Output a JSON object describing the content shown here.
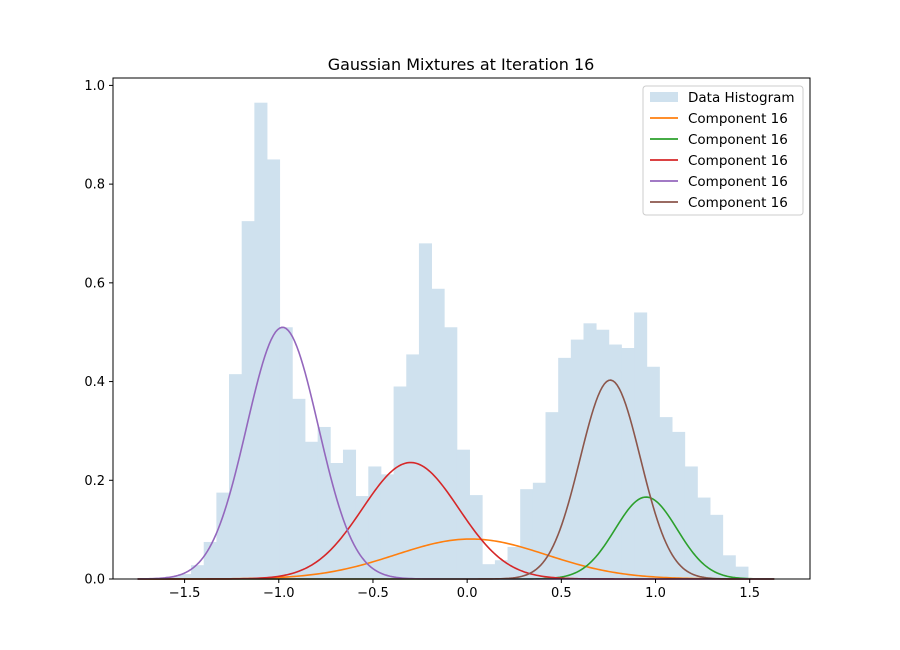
{
  "chart_data": {
    "type": "histogram-with-lines",
    "title": "Gaussian Mixtures at Iteration 16",
    "xlabel": "",
    "ylabel": "",
    "xlim": [
      -1.88,
      1.82
    ],
    "ylim": [
      0,
      1.015
    ],
    "xticks": [
      -1.5,
      -1.0,
      -0.5,
      0.0,
      0.5,
      1.0,
      1.5
    ],
    "xtick_labels": [
      "−1.5",
      "−1.0",
      "−0.5",
      "0.0",
      "0.5",
      "1.0",
      "1.5"
    ],
    "yticks": [
      0.0,
      0.2,
      0.4,
      0.6,
      0.8,
      1.0
    ],
    "ytick_labels": [
      "0.0",
      "0.2",
      "0.4",
      "0.6",
      "0.8",
      "1.0"
    ],
    "legend_position": "upper right",
    "histogram": {
      "name": "Data Histogram",
      "color": "#cfe1ee",
      "bin_start": -1.6,
      "bin_width": 0.0672,
      "heights": [
        0.005,
        0.01,
        0.028,
        0.075,
        0.175,
        0.415,
        0.725,
        0.965,
        0.85,
        0.51,
        0.365,
        0.278,
        0.308,
        0.235,
        0.262,
        0.168,
        0.228,
        0.212,
        0.39,
        0.455,
        0.68,
        0.588,
        0.51,
        0.262,
        0.17,
        0.03,
        0.038,
        0.065,
        0.182,
        0.195,
        0.338,
        0.448,
        0.485,
        0.518,
        0.505,
        0.475,
        0.468,
        0.54,
        0.43,
        0.328,
        0.298,
        0.228,
        0.165,
        0.13,
        0.048,
        0.025
      ]
    },
    "series": [
      {
        "name": "Component 16",
        "color": "#ff7f0e",
        "mean": 0.02,
        "std": 0.4,
        "peak": 0.081
      },
      {
        "name": "Component 16",
        "color": "#2ca02c",
        "mean": 0.95,
        "std": 0.165,
        "peak": 0.166
      },
      {
        "name": "Component 16",
        "color": "#d62728",
        "mean": -0.3,
        "std": 0.255,
        "peak": 0.236
      },
      {
        "name": "Component 16",
        "color": "#9467bd",
        "mean": -0.98,
        "std": 0.19,
        "peak": 0.51
      },
      {
        "name": "Component 16",
        "color": "#8c564b",
        "mean": 0.76,
        "std": 0.16,
        "peak": 0.403
      }
    ],
    "line_x_range": [
      -1.75,
      1.63
    ]
  }
}
